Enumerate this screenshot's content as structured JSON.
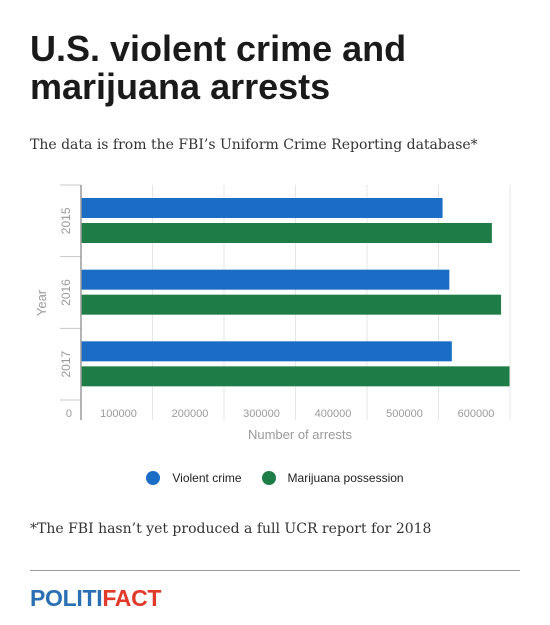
{
  "header": {
    "title": "U.S. violent crime and marijuana arrests",
    "subtitle": "The data is from the FBI’s Uniform Crime Reporting database*"
  },
  "chart_data": {
    "type": "bar",
    "orientation": "horizontal",
    "categories": [
      "2015",
      "2016",
      "2017"
    ],
    "series": [
      {
        "name": "Violent crime",
        "color": "#1a6cc4",
        "values": [
          505681,
          515151,
          518617
        ]
      },
      {
        "name": "Marijuana possession",
        "color": "#1e7d46",
        "values": [
          574641,
          587516,
          599282
        ]
      }
    ],
    "xlabel": "Number of arrests",
    "ylabel": "Year",
    "xlim": [
      0,
      600000
    ],
    "xticks": [
      0,
      100000,
      200000,
      300000,
      400000,
      500000,
      600000
    ],
    "tick_labels": [
      "0",
      "100000",
      "200000",
      "300000",
      "400000",
      "500000",
      "600000"
    ],
    "grid": true,
    "legend_position": "bottom"
  },
  "footer": {
    "note": "*The FBI hasn’t yet produced a full UCR report for 2018",
    "logo_part1": "POLITI",
    "logo_part2": "FACT"
  }
}
